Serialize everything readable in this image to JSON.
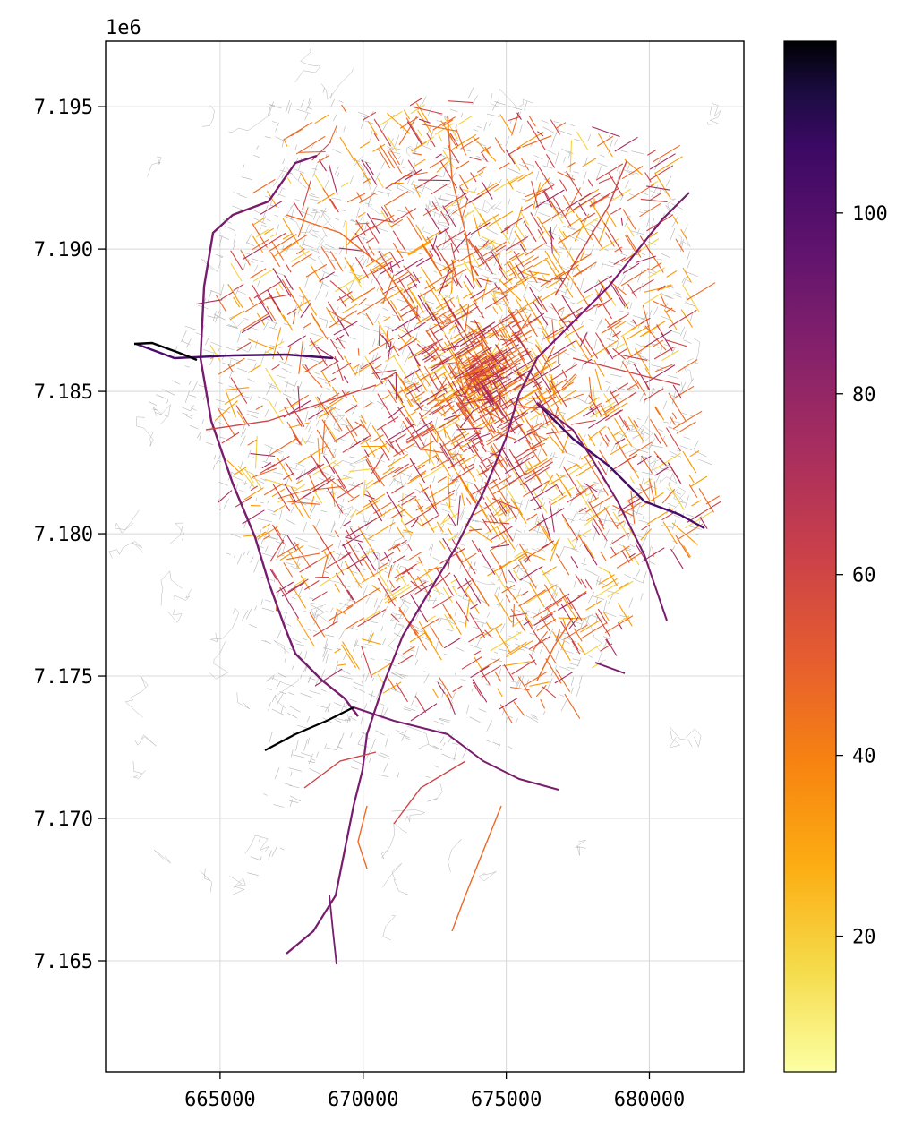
{
  "chart_data": {
    "type": "map",
    "x_ticks": [
      "665000",
      "670000",
      "675000",
      "680000"
    ],
    "x_tick_values": [
      665000,
      670000,
      675000,
      680000
    ],
    "y_ticks": [
      "7.165",
      "7.170",
      "7.175",
      "7.180",
      "7.185",
      "7.190",
      "7.195"
    ],
    "y_tick_values": [
      7.165,
      7.17,
      7.175,
      7.18,
      7.185,
      7.19,
      7.195
    ],
    "y_offset_label": "1e6",
    "xlim": [
      661000,
      683300
    ],
    "ylim": [
      7.1611,
      7.1973
    ],
    "grid": true,
    "colorbar": {
      "colormap": "inferno_r",
      "range": [
        5,
        119
      ],
      "ticks": [
        "20",
        "40",
        "60",
        "80",
        "100"
      ],
      "tick_values": [
        20,
        40,
        60,
        80,
        100
      ]
    },
    "base_network_color": "#b4b4b4",
    "colors": {
      "low": "#fcffa4",
      "yellow": "#f7d13d",
      "orange": "#fb9b06",
      "red_orange": "#ed6925",
      "red": "#cf4446",
      "magenta": "#a52c60",
      "purple": "#781c6d",
      "dark_purple": "#4a0c6b",
      "black": "#000004"
    }
  }
}
